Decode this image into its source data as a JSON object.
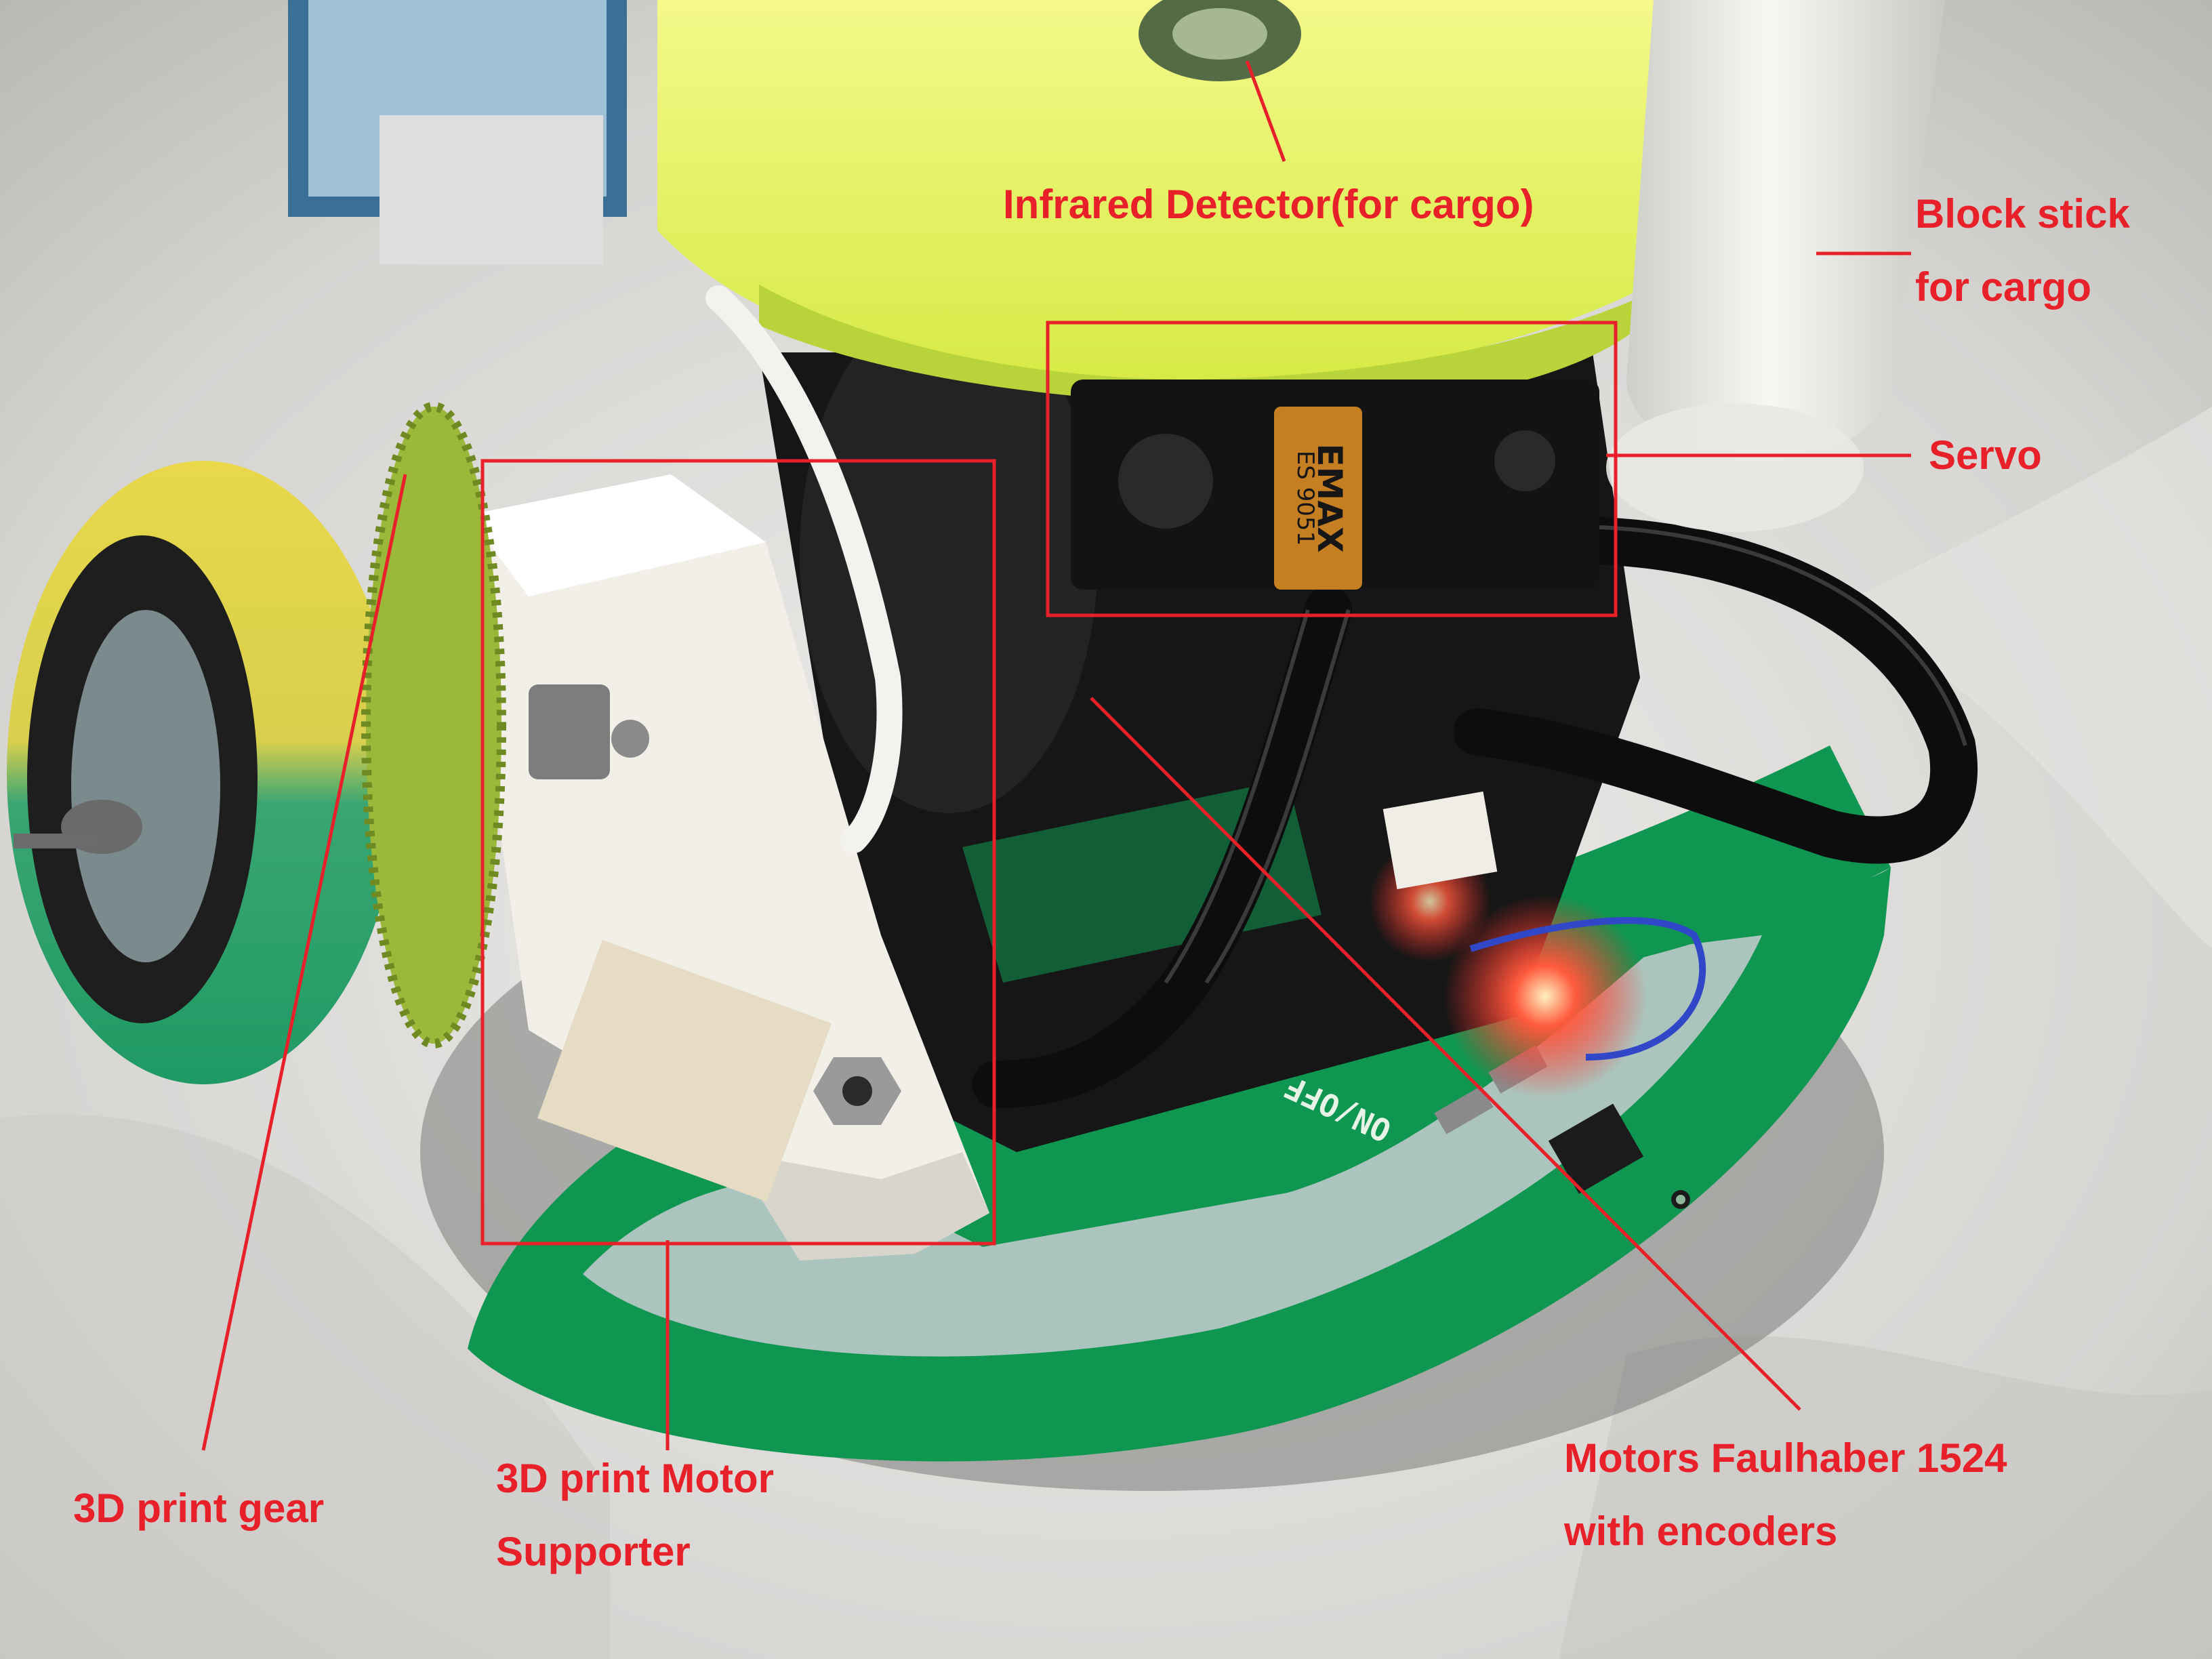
{
  "colors": {
    "annotation": "#e8202a",
    "pcb_green": "#0f9650",
    "wheel_yellow": "#e8d84a",
    "wheel_green": "#2aa46e",
    "tray_yellow": "#e6f25a",
    "white_plastic": "#f1efe8",
    "motor_black": "#161616"
  },
  "labels": {
    "infrared_detector": {
      "lines": [
        "Infrared Detector(for cargo)"
      ]
    },
    "block_stick": {
      "lines": [
        "Block stick",
        "for cargo"
      ]
    },
    "servo": {
      "lines": [
        "Servo"
      ]
    },
    "gear": {
      "lines": [
        "3D print gear"
      ]
    },
    "motor_supporter": {
      "lines": [
        "3D print Motor",
        "Supporter"
      ]
    },
    "motors": {
      "lines": [
        "Motors Faulhaber 1524",
        "with encoders"
      ]
    }
  },
  "components": {
    "servo_brand": "EMAX",
    "servo_model": "ES 9051",
    "pcb_marking": "ON/OFF"
  }
}
